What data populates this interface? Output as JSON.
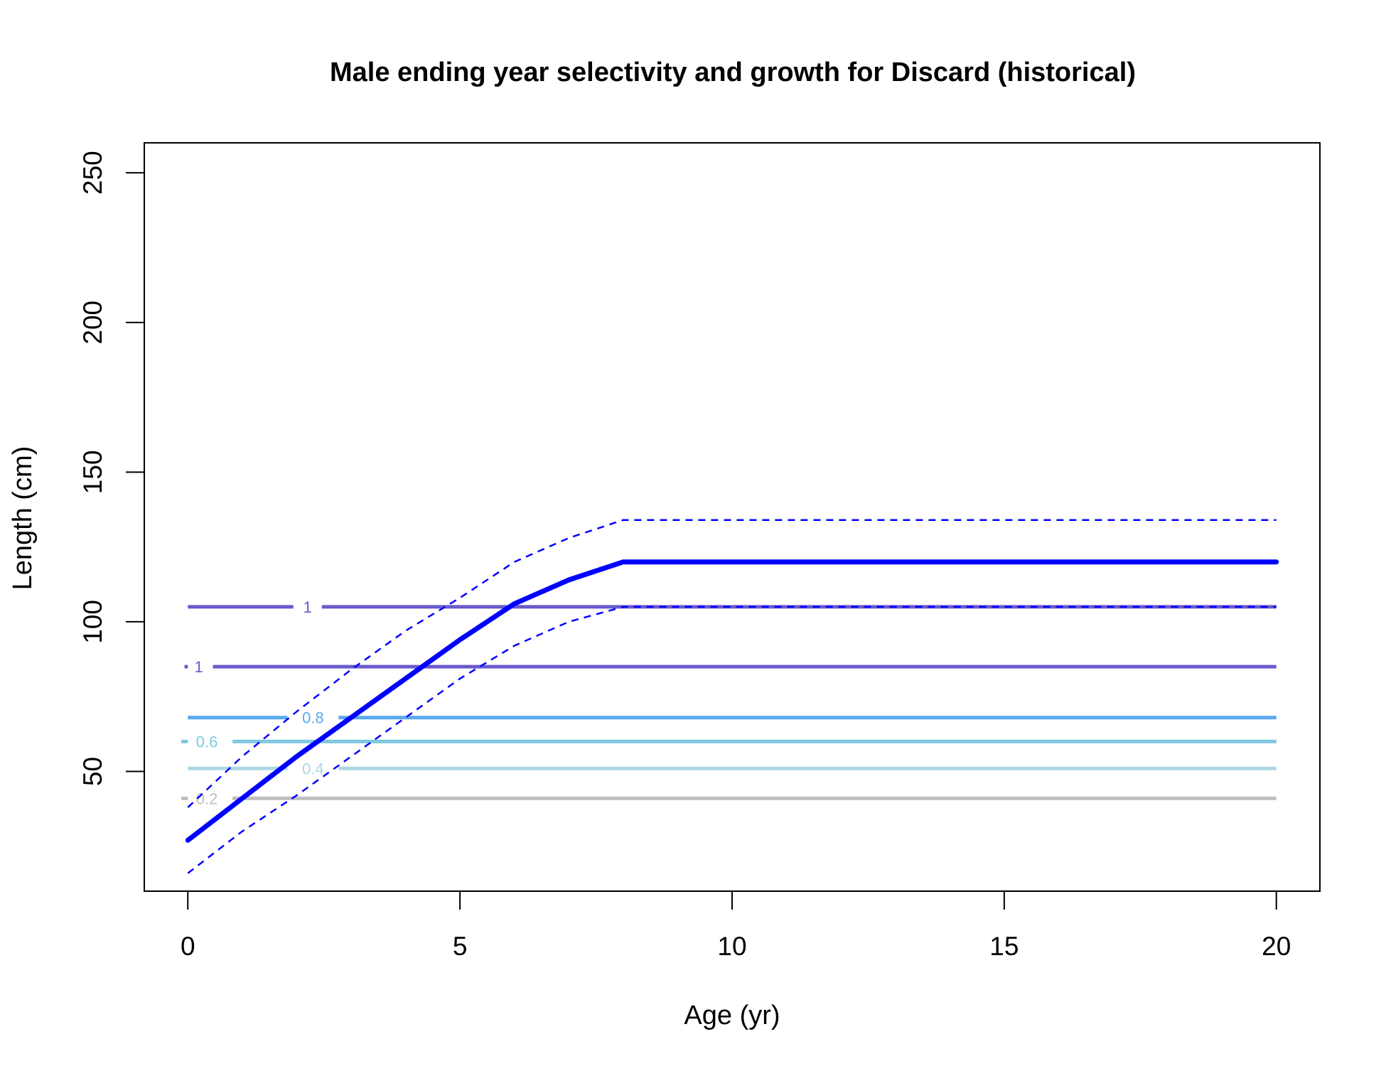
{
  "chart_data": {
    "type": "line",
    "title": "Male ending year selectivity and growth for Discard (historical)",
    "xlabel": "Age (yr)",
    "ylabel": "Length (cm)",
    "xlim": [
      -0.8,
      20.8
    ],
    "ylim": [
      10,
      260
    ],
    "xticks": [
      0,
      5,
      10,
      15,
      20
    ],
    "yticks": [
      50,
      100,
      150,
      200,
      250
    ],
    "growth": {
      "color": "#0000ff",
      "x": [
        0,
        1,
        2,
        3,
        4,
        5,
        6,
        7,
        8,
        8.5,
        20
      ],
      "mean": [
        27,
        41,
        55,
        68,
        81,
        94,
        106,
        114,
        120,
        120,
        120
      ],
      "upper": [
        38,
        55,
        70,
        84,
        97,
        108,
        120,
        128,
        134,
        134,
        134
      ],
      "lower": [
        16,
        30,
        42,
        55,
        68,
        81,
        92,
        100,
        105,
        105,
        105
      ]
    },
    "contours": [
      {
        "level": "1",
        "length": 105,
        "color": "#6a5acd",
        "label_x": 2.2
      },
      {
        "level": "1",
        "length": 85,
        "color": "#6a5acd",
        "label_x": 0.2
      },
      {
        "level": "0.8",
        "length": 68,
        "color": "#5aa9f0",
        "label_x": 2.3
      },
      {
        "level": "0.6",
        "length": 60,
        "color": "#7ec8e3",
        "label_x": 0.35
      },
      {
        "level": "0.4",
        "length": 51,
        "color": "#add8e6",
        "label_x": 2.3
      },
      {
        "level": "0.2",
        "length": 41,
        "color": "#bebebe",
        "label_x": 0.35
      }
    ]
  }
}
